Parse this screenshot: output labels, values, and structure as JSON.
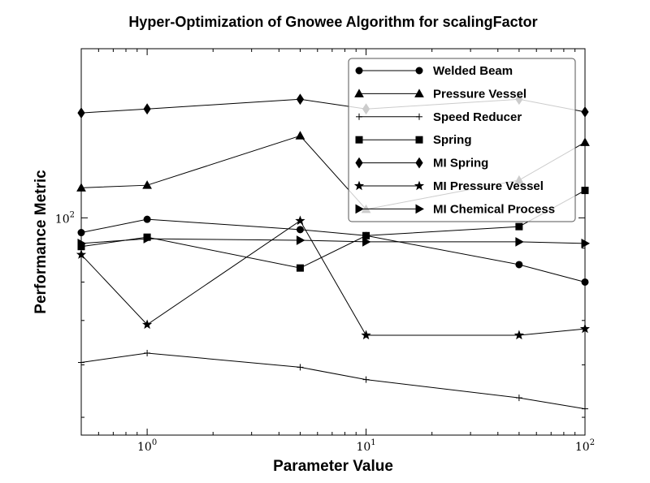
{
  "chart_data": {
    "type": "line",
    "title": "Hyper-Optimization of Gnowee Algorithm for scalingFactor",
    "xlabel": "Parameter Value",
    "ylabel": "Performance Metric",
    "xscale": "log",
    "yscale": "log",
    "xlim": [
      0.5,
      100
    ],
    "ylim": [
      47,
      180
    ],
    "x_ticks": [
      {
        "base": "10",
        "exp": "0",
        "value": 1
      },
      {
        "base": "10",
        "exp": "1",
        "value": 10
      },
      {
        "base": "10",
        "exp": "2",
        "value": 100
      }
    ],
    "y_ticks": [
      {
        "base": "10",
        "exp": "2",
        "value": 100
      }
    ],
    "grid": false,
    "legend_position": "top-right",
    "series": [
      {
        "name": "Welded Beam",
        "marker": "circle",
        "x": [
          0.5,
          1,
          5,
          10,
          50,
          100
        ],
        "y": [
          95,
          99.5,
          96,
          94,
          85,
          80
        ]
      },
      {
        "name": "Pressure Vessel",
        "marker": "triangle",
        "x": [
          0.5,
          1,
          5,
          10,
          50,
          100
        ],
        "y": [
          111,
          112,
          133,
          103,
          114,
          130
        ]
      },
      {
        "name": "Speed Reducer",
        "marker": "plus",
        "x": [
          0.5,
          1,
          5,
          10,
          50,
          100
        ],
        "y": [
          60.5,
          62.5,
          59.5,
          57,
          53.5,
          51.5
        ]
      },
      {
        "name": "Spring",
        "marker": "square",
        "x": [
          0.5,
          1,
          5,
          10,
          50,
          100
        ],
        "y": [
          90.5,
          93.5,
          84,
          94,
          97,
          110
        ]
      },
      {
        "name": "MI Spring",
        "marker": "diamond",
        "x": [
          0.5,
          1,
          5,
          10,
          50,
          100
        ],
        "y": [
          144,
          146,
          151,
          146,
          151,
          144.5
        ]
      },
      {
        "name": "MI Pressure Vessel",
        "marker": "star",
        "x": [
          0.5,
          1,
          5,
          10,
          50,
          100
        ],
        "y": [
          88,
          69,
          99,
          66.5,
          66.5,
          68
        ]
      },
      {
        "name": "MI Chemical Process",
        "marker": "triangle-right",
        "x": [
          0.5,
          1,
          5,
          10,
          50,
          100
        ],
        "y": [
          91.5,
          93,
          92.5,
          92,
          92,
          91.5
        ]
      }
    ]
  }
}
